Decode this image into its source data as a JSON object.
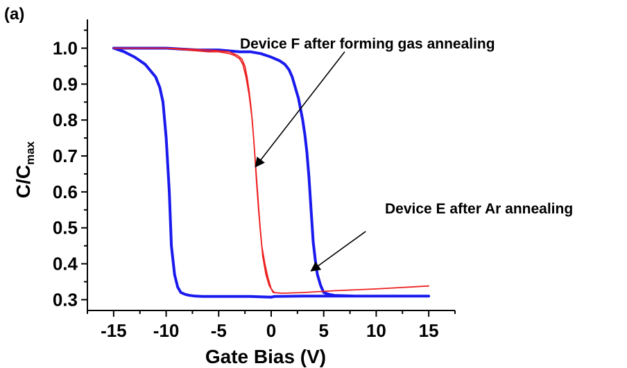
{
  "chart_data": {
    "type": "line",
    "panel_label": "(a)",
    "xlabel": "Gate Bias (V)",
    "ylabel_main": "C/C",
    "ylabel_sub": "max",
    "xlim": [
      -17.5,
      17.5
    ],
    "ylim": [
      0.27,
      1.08
    ],
    "x_ticks": [
      -15,
      -10,
      -5,
      0,
      5,
      10,
      15
    ],
    "x_tick_labels": [
      "-15",
      "-10",
      "-5",
      "0",
      "5",
      "10",
      "15"
    ],
    "y_ticks": [
      0.3,
      0.4,
      0.5,
      0.6,
      0.7,
      0.8,
      0.9,
      1.0
    ],
    "y_tick_labels": [
      "0.3",
      "0.4",
      "0.5",
      "0.6",
      "0.7",
      "0.8",
      "0.9",
      "1.0"
    ],
    "grid": false,
    "series": [
      {
        "name": "Device E after Ar annealing",
        "color": "#1a1aee",
        "x": [
          -15,
          -14,
          -13,
          -12,
          -11,
          -10.6,
          -10.3,
          -10,
          -9.7,
          -9.5,
          -9.2,
          -8.9,
          -8.6,
          -8.2,
          -7.8,
          -7.2,
          -6.5,
          -5,
          -2,
          0,
          0.3,
          3,
          7,
          10,
          15,
          15,
          12,
          10,
          8,
          6,
          5.5,
          5,
          4.7,
          4.4,
          4.2,
          4,
          3.8,
          3.6,
          3.4,
          3.2,
          3,
          2.8,
          2.6,
          2.4,
          2.2,
          2,
          1.7,
          1.3,
          0.8,
          0,
          -1,
          -2,
          -3,
          -5,
          -7,
          -10,
          -13,
          -15
        ],
        "y": [
          1.0,
          0.99,
          0.975,
          0.955,
          0.92,
          0.89,
          0.85,
          0.75,
          0.6,
          0.45,
          0.37,
          0.335,
          0.32,
          0.315,
          0.312,
          0.31,
          0.309,
          0.309,
          0.309,
          0.307,
          0.309,
          0.31,
          0.31,
          0.31,
          0.31,
          0.31,
          0.31,
          0.31,
          0.31,
          0.312,
          0.315,
          0.32,
          0.34,
          0.37,
          0.41,
          0.46,
          0.55,
          0.64,
          0.71,
          0.76,
          0.8,
          0.83,
          0.86,
          0.88,
          0.9,
          0.92,
          0.94,
          0.955,
          0.965,
          0.975,
          0.985,
          0.99,
          0.99,
          0.995,
          0.995,
          1.0,
          1.0,
          1.0
        ]
      },
      {
        "name": "Device F after forming gas annealing",
        "color": "#ee2020",
        "x": [
          -15,
          -12,
          -10,
          -8,
          -6,
          -5,
          -4,
          -3.5,
          -3,
          -2.7,
          -2.4,
          -2.1,
          -1.8,
          -1.6,
          -1.4,
          -1.2,
          -1,
          -0.8,
          -0.5,
          -0.2,
          0.2,
          1,
          3,
          6,
          10,
          15,
          15,
          10,
          6,
          3,
          1,
          0.3,
          0,
          -0.3,
          -0.6,
          -0.9,
          -1.1,
          -1.3,
          -1.5,
          -1.7,
          -1.9,
          -2.1,
          -2.3,
          -2.5,
          -2.8,
          -3.2,
          -4,
          -6,
          -10,
          -15
        ],
        "y": [
          1.0,
          1.0,
          1.0,
          0.995,
          0.99,
          0.99,
          0.985,
          0.98,
          0.97,
          0.955,
          0.92,
          0.87,
          0.8,
          0.72,
          0.63,
          0.55,
          0.48,
          0.42,
          0.37,
          0.34,
          0.32,
          0.318,
          0.32,
          0.325,
          0.33,
          0.338,
          0.338,
          0.33,
          0.325,
          0.32,
          0.318,
          0.32,
          0.33,
          0.36,
          0.4,
          0.45,
          0.52,
          0.6,
          0.68,
          0.76,
          0.83,
          0.88,
          0.92,
          0.95,
          0.97,
          0.98,
          0.99,
          0.995,
          1.0,
          1.0
        ]
      }
    ],
    "annotations": [
      {
        "text": "Device F after forming gas annealing",
        "arrow_from": [
          7,
          0.99
        ],
        "arrow_to": [
          -1.5,
          0.67
        ]
      },
      {
        "text": "Device E after Ar annealing",
        "arrow_from": [
          9,
          0.49
        ],
        "arrow_to": [
          3.8,
          0.38
        ]
      }
    ]
  }
}
